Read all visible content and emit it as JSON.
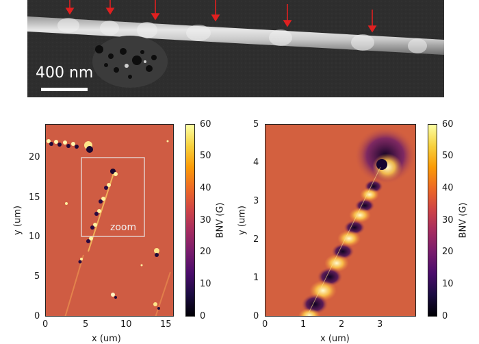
{
  "sem": {
    "scalebar_label": "400 nm"
  },
  "panel_left": {
    "xlabel": "x (um)",
    "ylabel": "y (um)",
    "xticks": [
      "0",
      "5",
      "10",
      "15"
    ],
    "yticks": [
      "0",
      "5",
      "10",
      "15",
      "20"
    ],
    "zoom_label": "zoom",
    "colorbar_label": "BNV (G)",
    "colorbar_ticks": [
      "0",
      "10",
      "20",
      "30",
      "40",
      "50",
      "60"
    ]
  },
  "panel_right": {
    "xlabel": "x (um)",
    "ylabel": "y (um)",
    "xticks": [
      "0",
      "1",
      "2",
      "3"
    ],
    "yticks": [
      "0",
      "1",
      "2",
      "3",
      "4",
      "5"
    ],
    "colorbar_label": "BNV (G)",
    "colorbar_ticks": [
      "0",
      "10",
      "20",
      "30",
      "40",
      "50",
      "60"
    ]
  },
  "chart_data": [
    {
      "type": "heatmap",
      "xlabel": "x (um)",
      "ylabel": "y (um)",
      "xlim": [
        0,
        16
      ],
      "ylim": [
        0,
        23
      ],
      "colorbar": {
        "label": "BNV (G)",
        "range": [
          0,
          60
        ]
      },
      "colormap": "inferno",
      "annotations": [
        "zoom"
      ]
    },
    {
      "type": "heatmap",
      "xlabel": "x (um)",
      "ylabel": "y (um)",
      "xlim": [
        0,
        3.9
      ],
      "ylim": [
        0,
        5
      ],
      "colorbar": {
        "label": "BNV (G)",
        "range": [
          0,
          60
        ]
      },
      "colormap": "inferno"
    }
  ]
}
